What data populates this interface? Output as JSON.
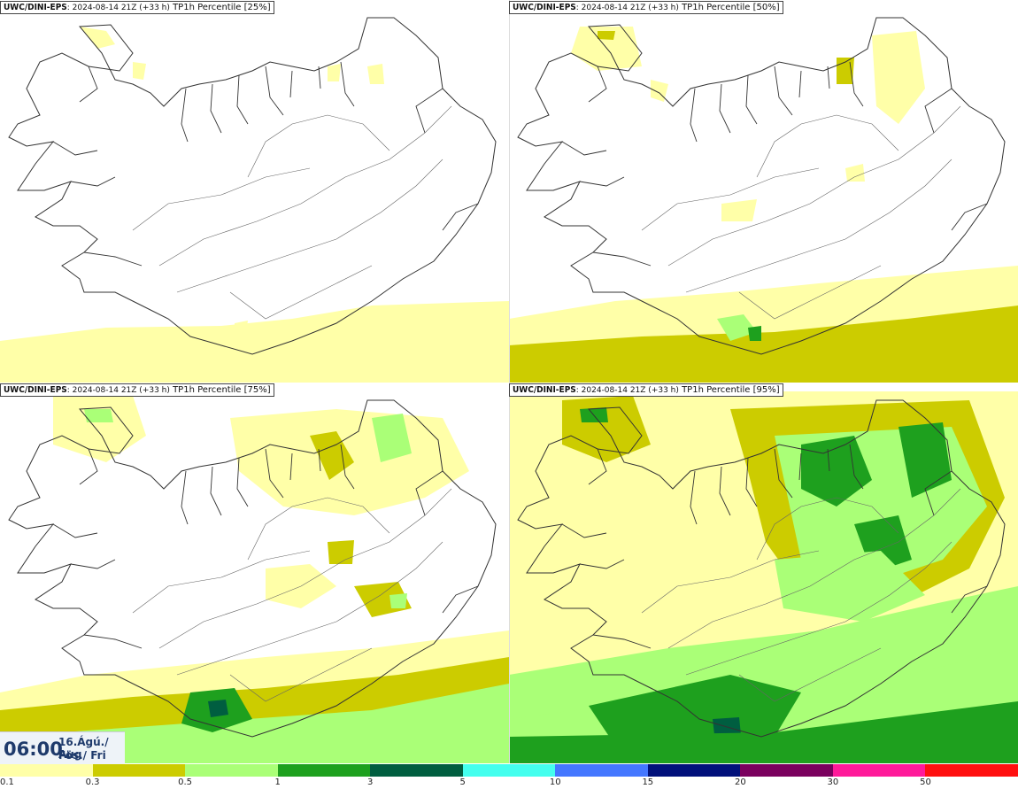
{
  "panels": [
    {
      "model": "UWC/DINI-EPS",
      "run": ": 2024-08-14 21Z (+33 h)",
      "field": " TP1h Percentile [25%]",
      "level": 0
    },
    {
      "model": "UWC/DINI-EPS",
      "run": ": 2024-08-14 21Z (+33 h)",
      "field": " TP1h Percentile [50%]",
      "level": 1
    },
    {
      "model": "UWC/DINI-EPS",
      "run": ": 2024-08-14 21Z (+33 h)",
      "field": " TP1h Percentile [75%]",
      "level": 2
    },
    {
      "model": "UWC/DINI-EPS",
      "run": ": 2024-08-14 21Z (+33 h)",
      "field": " TP1h Percentile [95%]",
      "level": 3
    }
  ],
  "valid_time": {
    "time": "06:00",
    "date": "16.Ágú./ Aug",
    "day": "Fös./ Fri"
  },
  "legend": {
    "labels": [
      "0.1",
      "0.3",
      "0.5",
      "1",
      "3",
      "5",
      "10",
      "15",
      "20",
      "30",
      "50"
    ],
    "colors": [
      "#ffffa8",
      "#cccc00",
      "#aaff77",
      "#1ea01e",
      "#005e40",
      "#44ffee",
      "#4477ff",
      "#00107a",
      "#7a005e",
      "#ff1a9a",
      "#ff1010"
    ]
  }
}
